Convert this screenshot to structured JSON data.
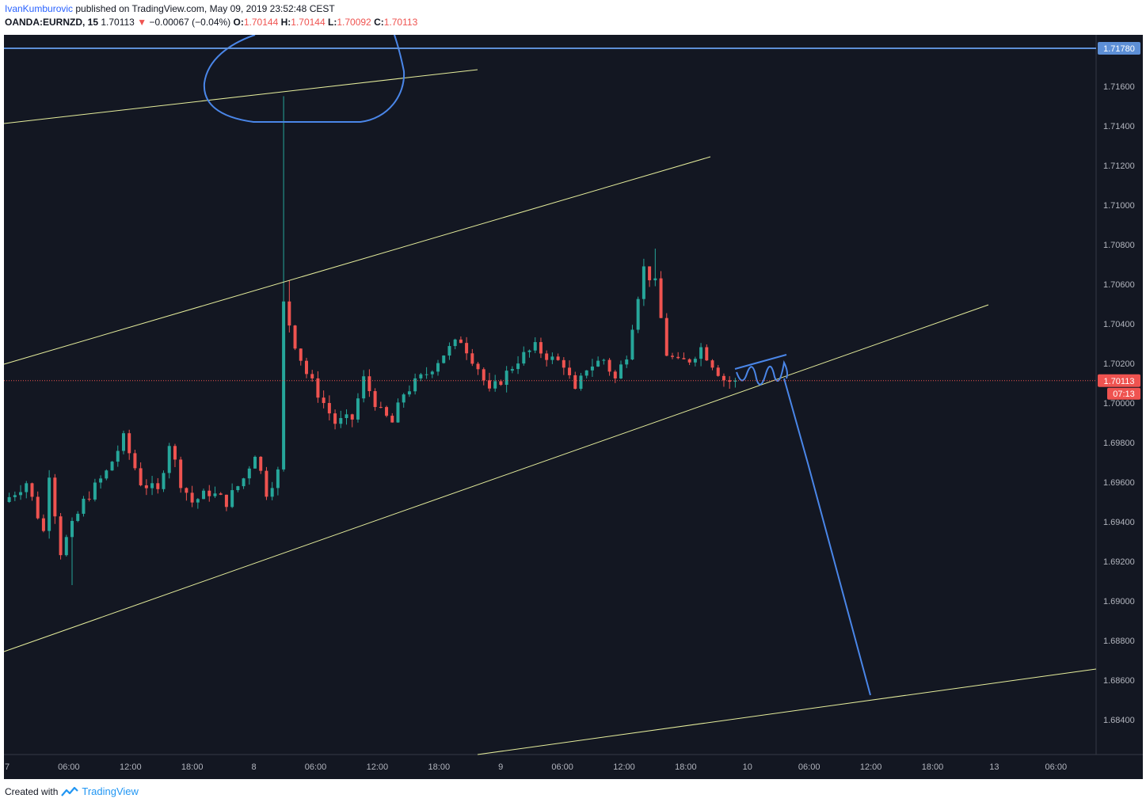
{
  "header": {
    "author": "IvanKumburovic",
    "published": " published on TradingView.com, May 09, 2019 23:52:48 CEST",
    "symbol": "OANDA:EURNZD, 15",
    "last": "1.70113",
    "change": "−0.00067 (−0.04%)",
    "open_label": "O:",
    "open": "1.70144",
    "high_label": "H:",
    "high": "1.70144",
    "low_label": "L:",
    "low": "1.70092",
    "close_label": "C:",
    "close": "1.70113"
  },
  "footer": {
    "created_with": "Created with",
    "brand": "TradingView"
  },
  "colors": {
    "background": "#131722",
    "up": "#26a69a",
    "down": "#ef5350",
    "channel": "#e6ee9c",
    "drawing": "#4a86e8",
    "level_badge": "#5d8fd6"
  },
  "chart_data": {
    "type": "candlestick",
    "symbol": "OANDA:EURNZD",
    "interval": "15",
    "ylim": [
      1.6824,
      1.7212
    ],
    "y_ticks": [
      "1.68400",
      "1.68600",
      "1.68800",
      "1.69000",
      "1.69200",
      "1.69400",
      "1.69600",
      "1.69800",
      "1.70000",
      "1.70200",
      "1.70400",
      "1.70600",
      "1.70800",
      "1.71000",
      "1.71200",
      "1.71400",
      "1.71600"
    ],
    "x_ticks": [
      "7",
      "06:00",
      "12:00",
      "18:00",
      "8",
      "06:00",
      "12:00",
      "18:00",
      "9",
      "06:00",
      "12:00",
      "18:00",
      "10",
      "06:00",
      "12:00",
      "18:00",
      "13",
      "06:00"
    ],
    "price_levels": [
      {
        "label": "1.71780",
        "value": 1.7178
      },
      {
        "label": "1.70113",
        "value": 1.70113,
        "countdown": "07:13"
      }
    ],
    "path": [
      [
        0,
        1.695
      ],
      [
        4,
        1.696
      ],
      [
        7,
        1.6935
      ],
      [
        8,
        1.6965
      ],
      [
        10,
        1.6925
      ],
      [
        14,
        1.695
      ],
      [
        18,
        1.6965
      ],
      [
        21,
        1.6982
      ],
      [
        24,
        1.696
      ],
      [
        27,
        1.6955
      ],
      [
        29,
        1.698
      ],
      [
        31,
        1.696
      ],
      [
        33,
        1.695
      ],
      [
        36,
        1.6955
      ],
      [
        39,
        1.695
      ],
      [
        42,
        1.6962
      ],
      [
        44,
        1.6975
      ],
      [
        46,
        1.6955
      ],
      [
        48,
        1.6965
      ],
      [
        49,
        1.705
      ],
      [
        51,
        1.703
      ],
      [
        53,
        1.7015
      ],
      [
        56,
        1.7
      ],
      [
        58,
        1.699
      ],
      [
        61,
        1.6992
      ],
      [
        63,
        1.7012
      ],
      [
        66,
        1.6995
      ],
      [
        68,
        1.699
      ],
      [
        70,
        1.7005
      ],
      [
        72,
        1.701
      ],
      [
        74,
        1.7015
      ],
      [
        77,
        1.7025
      ],
      [
        80,
        1.7032
      ],
      [
        83,
        1.7018
      ],
      [
        85,
        1.7005
      ],
      [
        88,
        1.7015
      ],
      [
        90,
        1.7022
      ],
      [
        93,
        1.7028
      ],
      [
        96,
        1.7022
      ],
      [
        98,
        1.702
      ],
      [
        100,
        1.7005
      ],
      [
        102,
        1.7018
      ],
      [
        105,
        1.7022
      ],
      [
        107,
        1.7012
      ],
      [
        109,
        1.7025
      ],
      [
        111,
        1.7055
      ],
      [
        112,
        1.7068
      ],
      [
        114,
        1.706
      ],
      [
        116,
        1.7025
      ],
      [
        118,
        1.702
      ],
      [
        120,
        1.7022
      ],
      [
        122,
        1.7028
      ],
      [
        124,
        1.702
      ],
      [
        126,
        1.7012
      ],
      [
        127,
        1.7011
      ]
    ]
  }
}
